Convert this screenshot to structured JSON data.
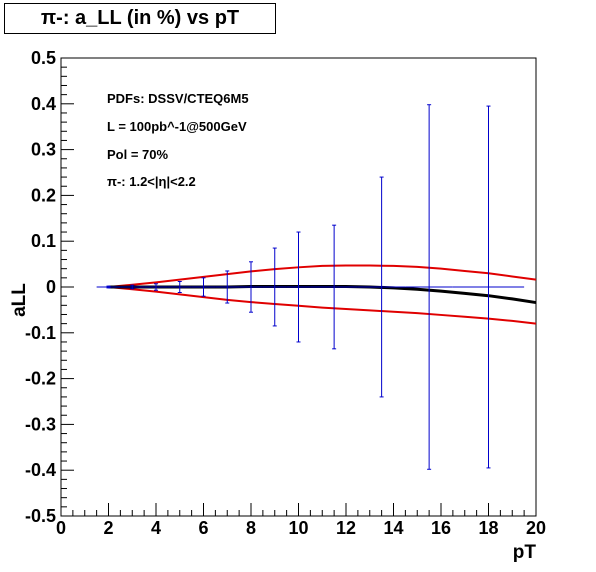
{
  "chart_data": {
    "type": "line",
    "title": "π-: a_LL (in %) vs pT",
    "xlabel": "pT",
    "ylabel": "aLL",
    "xlim": [
      0,
      20
    ],
    "ylim": [
      -0.5,
      0.5
    ],
    "x_ticks": [
      0,
      2,
      4,
      6,
      8,
      10,
      12,
      14,
      16,
      18,
      20
    ],
    "y_ticks": [
      -0.5,
      -0.4,
      -0.3,
      -0.2,
      -0.1,
      0,
      0.1,
      0.2,
      0.3,
      0.4,
      0.5
    ],
    "y_tick_labels": [
      "-0.5",
      "-0.4",
      "-0.3",
      "-0.2",
      "-0.1",
      "0",
      "0.1",
      "0.2",
      "0.3",
      "0.4",
      "0.5"
    ],
    "annotations": [
      "PDFs: DSSV/CTEQ6M5",
      "L = 100pb^-1@500GeV",
      "Pol = 70%",
      "π-: 1.2<|η|<2.2"
    ],
    "grid": false,
    "series": [
      {
        "color": "#000000",
        "style": "curve",
        "x": [
          2,
          3,
          4,
          5,
          6,
          7,
          8,
          9,
          10,
          11,
          12,
          13,
          14,
          15,
          16,
          17,
          18,
          19,
          20
        ],
        "y": [
          0.0,
          0.0,
          0.0,
          0.0,
          0.0,
          0.0,
          0.001,
          0.001,
          0.001,
          0.001,
          0.001,
          0.0,
          -0.002,
          -0.005,
          -0.009,
          -0.014,
          -0.019,
          -0.026,
          -0.034
        ]
      },
      {
        "color": "#e00000",
        "style": "curve",
        "x": [
          2,
          3,
          4,
          5,
          6,
          7,
          8,
          9,
          10,
          11,
          12,
          13,
          14,
          15,
          16,
          17,
          18,
          19,
          20
        ],
        "y": [
          0.0,
          0.005,
          0.01,
          0.016,
          0.022,
          0.028,
          0.034,
          0.039,
          0.043,
          0.046,
          0.047,
          0.047,
          0.046,
          0.044,
          0.04,
          0.035,
          0.03,
          0.023,
          0.016
        ]
      },
      {
        "color": "#e00000",
        "style": "curve",
        "x": [
          2,
          3,
          4,
          5,
          6,
          7,
          8,
          9,
          10,
          11,
          12,
          13,
          14,
          15,
          16,
          17,
          18,
          19,
          20
        ],
        "y": [
          0.0,
          -0.005,
          -0.01,
          -0.016,
          -0.022,
          -0.028,
          -0.033,
          -0.037,
          -0.041,
          -0.045,
          -0.048,
          -0.051,
          -0.054,
          -0.057,
          -0.061,
          -0.065,
          -0.069,
          -0.074,
          -0.08
        ]
      },
      {
        "color": "#0000cc",
        "style": "error_bars",
        "x": [
          2,
          3,
          4,
          5,
          6,
          7,
          8,
          9,
          10,
          11.5,
          13.5,
          15.5,
          18
        ],
        "y": [
          0,
          0,
          0,
          0,
          0,
          0,
          0,
          0,
          0,
          0,
          0,
          0,
          0
        ],
        "x_half_width": [
          0.5,
          0.5,
          0.5,
          0.5,
          0.5,
          0.5,
          0.5,
          0.5,
          0.5,
          1.0,
          1.0,
          1.0,
          1.5
        ],
        "y_error": [
          0.002,
          0.004,
          0.007,
          0.012,
          0.02,
          0.035,
          0.055,
          0.085,
          0.12,
          0.135,
          0.24,
          0.398,
          0.395
        ]
      }
    ]
  }
}
